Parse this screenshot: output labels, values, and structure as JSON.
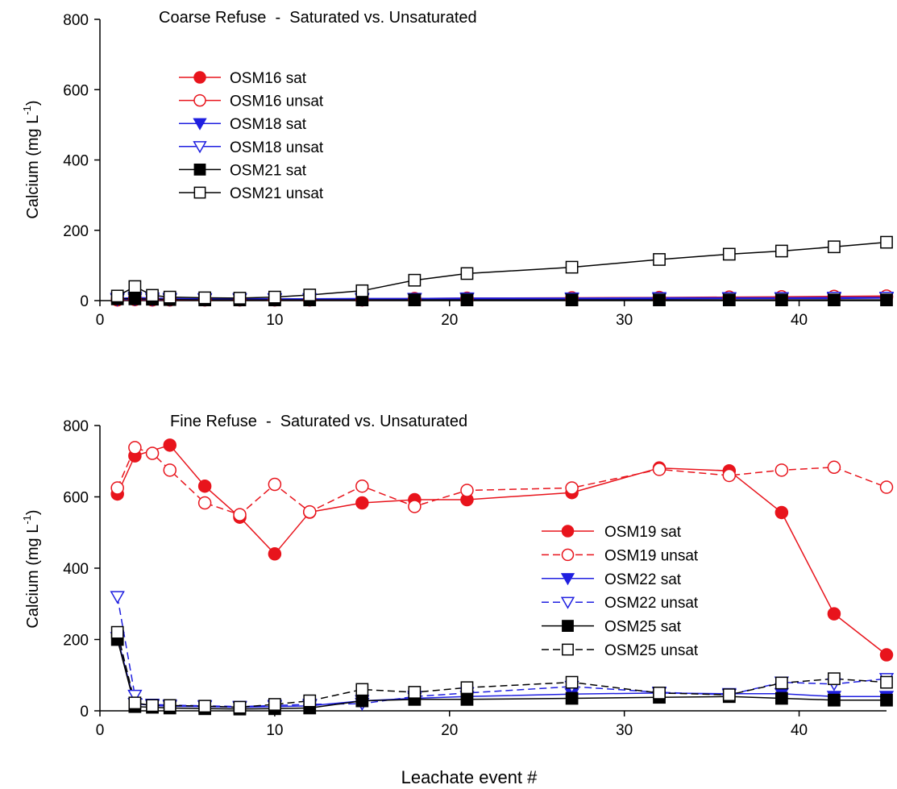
{
  "chart_data": [
    {
      "type": "line",
      "title": "Coarse Refuse  -  Saturated vs. Unsaturated",
      "ylabel": "Calcium (mg L",
      "ylabel_superscript": "-1",
      "ylabel_close": ")",
      "xlabel": "",
      "xlim": [
        0,
        45
      ],
      "ylim": [
        0,
        800
      ],
      "xticks": [
        0,
        10,
        20,
        30,
        40
      ],
      "yticks": [
        0,
        200,
        400,
        600,
        800
      ],
      "grid": false,
      "legend_position": "top-left",
      "series": [
        {
          "name": "OSM16 sat",
          "color": "#e8141c",
          "marker": "circle",
          "filled": true,
          "dash": "solid",
          "x": [
            1,
            2,
            3,
            4,
            6,
            8,
            10,
            12,
            15,
            18,
            21,
            27,
            32,
            36,
            39,
            42,
            45
          ],
          "y": [
            2,
            3,
            2,
            2,
            2,
            2,
            2,
            2,
            2,
            3,
            4,
            5,
            6,
            7,
            8,
            9,
            10
          ]
        },
        {
          "name": "OSM16 unsat",
          "color": "#e8141c",
          "marker": "circle",
          "filled": false,
          "dash": "solid",
          "x": [
            1,
            2,
            3,
            4,
            6,
            8,
            10,
            12,
            15,
            18,
            21,
            27,
            32,
            36,
            39,
            42,
            45
          ],
          "y": [
            5,
            8,
            6,
            5,
            4,
            4,
            4,
            4,
            5,
            6,
            7,
            8,
            9,
            10,
            11,
            12,
            13
          ]
        },
        {
          "name": "OSM18 sat",
          "color": "#1f1fe0",
          "marker": "triangle-down",
          "filled": true,
          "dash": "solid",
          "x": [
            1,
            2,
            3,
            4,
            6,
            8,
            10,
            12,
            15,
            18,
            21,
            27,
            32,
            36,
            39,
            42,
            45
          ],
          "y": [
            3,
            4,
            3,
            3,
            3,
            3,
            3,
            3,
            3,
            4,
            5,
            5,
            5,
            6,
            6,
            6,
            7
          ]
        },
        {
          "name": "OSM18 unsat",
          "color": "#1f1fe0",
          "marker": "triangle-down",
          "filled": false,
          "dash": "solid",
          "x": [
            1,
            2,
            3,
            4,
            6,
            8,
            10,
            12,
            15,
            18,
            21,
            27,
            32,
            36,
            39,
            42,
            45
          ],
          "y": [
            6,
            9,
            7,
            6,
            5,
            5,
            5,
            5,
            6,
            6,
            7,
            7,
            8,
            8,
            8,
            9,
            9
          ]
        },
        {
          "name": "OSM21 sat",
          "color": "#000000",
          "marker": "square",
          "filled": true,
          "dash": "solid",
          "x": [
            1,
            2,
            3,
            4,
            6,
            8,
            10,
            12,
            15,
            18,
            21,
            27,
            32,
            36,
            39,
            42,
            45
          ],
          "y": [
            5,
            5,
            4,
            3,
            2,
            2,
            2,
            2,
            2,
            2,
            2,
            2,
            2,
            2,
            2,
            2,
            2
          ]
        },
        {
          "name": "OSM21 unsat",
          "color": "#000000",
          "marker": "square",
          "filled": false,
          "dash": "solid",
          "x": [
            1,
            2,
            3,
            4,
            6,
            8,
            10,
            12,
            15,
            18,
            21,
            27,
            32,
            36,
            39,
            42,
            45
          ],
          "y": [
            13,
            40,
            15,
            10,
            8,
            7,
            10,
            16,
            28,
            58,
            77,
            95,
            117,
            132,
            141,
            153,
            166
          ]
        }
      ]
    },
    {
      "type": "line",
      "title": "Fine Refuse  -  Saturated vs. Unsaturated",
      "ylabel": "Calcium (mg L",
      "ylabel_superscript": "-1",
      "ylabel_close": ")",
      "xlabel": "Leachate event #",
      "xlim": [
        0,
        45
      ],
      "ylim": [
        0,
        800
      ],
      "xticks": [
        0,
        10,
        20,
        30,
        40
      ],
      "yticks": [
        0,
        200,
        400,
        600,
        800
      ],
      "grid": false,
      "legend_position": "middle-right",
      "series": [
        {
          "name": "OSM19 sat",
          "color": "#e8141c",
          "marker": "circle",
          "filled": true,
          "dash": "solid",
          "x": [
            1,
            2,
            4,
            6,
            8,
            10,
            12,
            15,
            18,
            21,
            27,
            32,
            36,
            39,
            42,
            45
          ],
          "y": [
            608,
            715,
            745,
            630,
            543,
            440,
            557,
            583,
            592,
            592,
            612,
            681,
            673,
            556,
            272,
            157
          ]
        },
        {
          "name": "OSM19 unsat",
          "color": "#e8141c",
          "marker": "circle",
          "filled": false,
          "dash": "dashed",
          "x": [
            1,
            2,
            3,
            4,
            6,
            8,
            10,
            12,
            15,
            18,
            21,
            27,
            32,
            36,
            39,
            42,
            45
          ],
          "y": [
            625,
            738,
            722,
            675,
            583,
            550,
            635,
            558,
            630,
            573,
            618,
            625,
            677,
            660,
            675,
            683,
            627
          ]
        },
        {
          "name": "OSM22 sat",
          "color": "#1f1fe0",
          "marker": "triangle-down",
          "filled": true,
          "dash": "solid",
          "x": [
            1,
            2,
            3,
            4,
            6,
            8,
            10,
            12,
            15,
            18,
            21,
            27,
            32,
            36,
            39,
            42,
            45
          ],
          "y": [
            205,
            20,
            15,
            13,
            12,
            10,
            12,
            14,
            28,
            35,
            40,
            47,
            50,
            48,
            48,
            40,
            40
          ]
        },
        {
          "name": "OSM22 unsat",
          "color": "#1f1fe0",
          "marker": "triangle-down",
          "filled": false,
          "dash": "dashed",
          "x": [
            1,
            2,
            3,
            4,
            6,
            8,
            10,
            12,
            15,
            18,
            21,
            27,
            32,
            36,
            39,
            42,
            45
          ],
          "y": [
            320,
            43,
            18,
            16,
            14,
            12,
            15,
            18,
            20,
            40,
            50,
            68,
            52,
            45,
            80,
            75,
            90
          ]
        },
        {
          "name": "OSM25 sat",
          "color": "#000000",
          "marker": "square",
          "filled": true,
          "dash": "solid",
          "x": [
            1,
            2,
            3,
            4,
            6,
            8,
            10,
            12,
            15,
            18,
            21,
            27,
            32,
            36,
            39,
            42,
            45
          ],
          "y": [
            200,
            12,
            10,
            8,
            6,
            5,
            6,
            8,
            28,
            32,
            32,
            35,
            38,
            40,
            35,
            30,
            30
          ]
        },
        {
          "name": "OSM25 unsat",
          "color": "#000000",
          "marker": "square",
          "filled": false,
          "dash": "dashed",
          "x": [
            1,
            2,
            3,
            4,
            6,
            8,
            10,
            12,
            15,
            18,
            21,
            27,
            32,
            36,
            39,
            42,
            45
          ],
          "y": [
            220,
            22,
            15,
            15,
            13,
            10,
            18,
            28,
            60,
            52,
            65,
            80,
            50,
            45,
            78,
            90,
            80
          ]
        }
      ]
    }
  ]
}
